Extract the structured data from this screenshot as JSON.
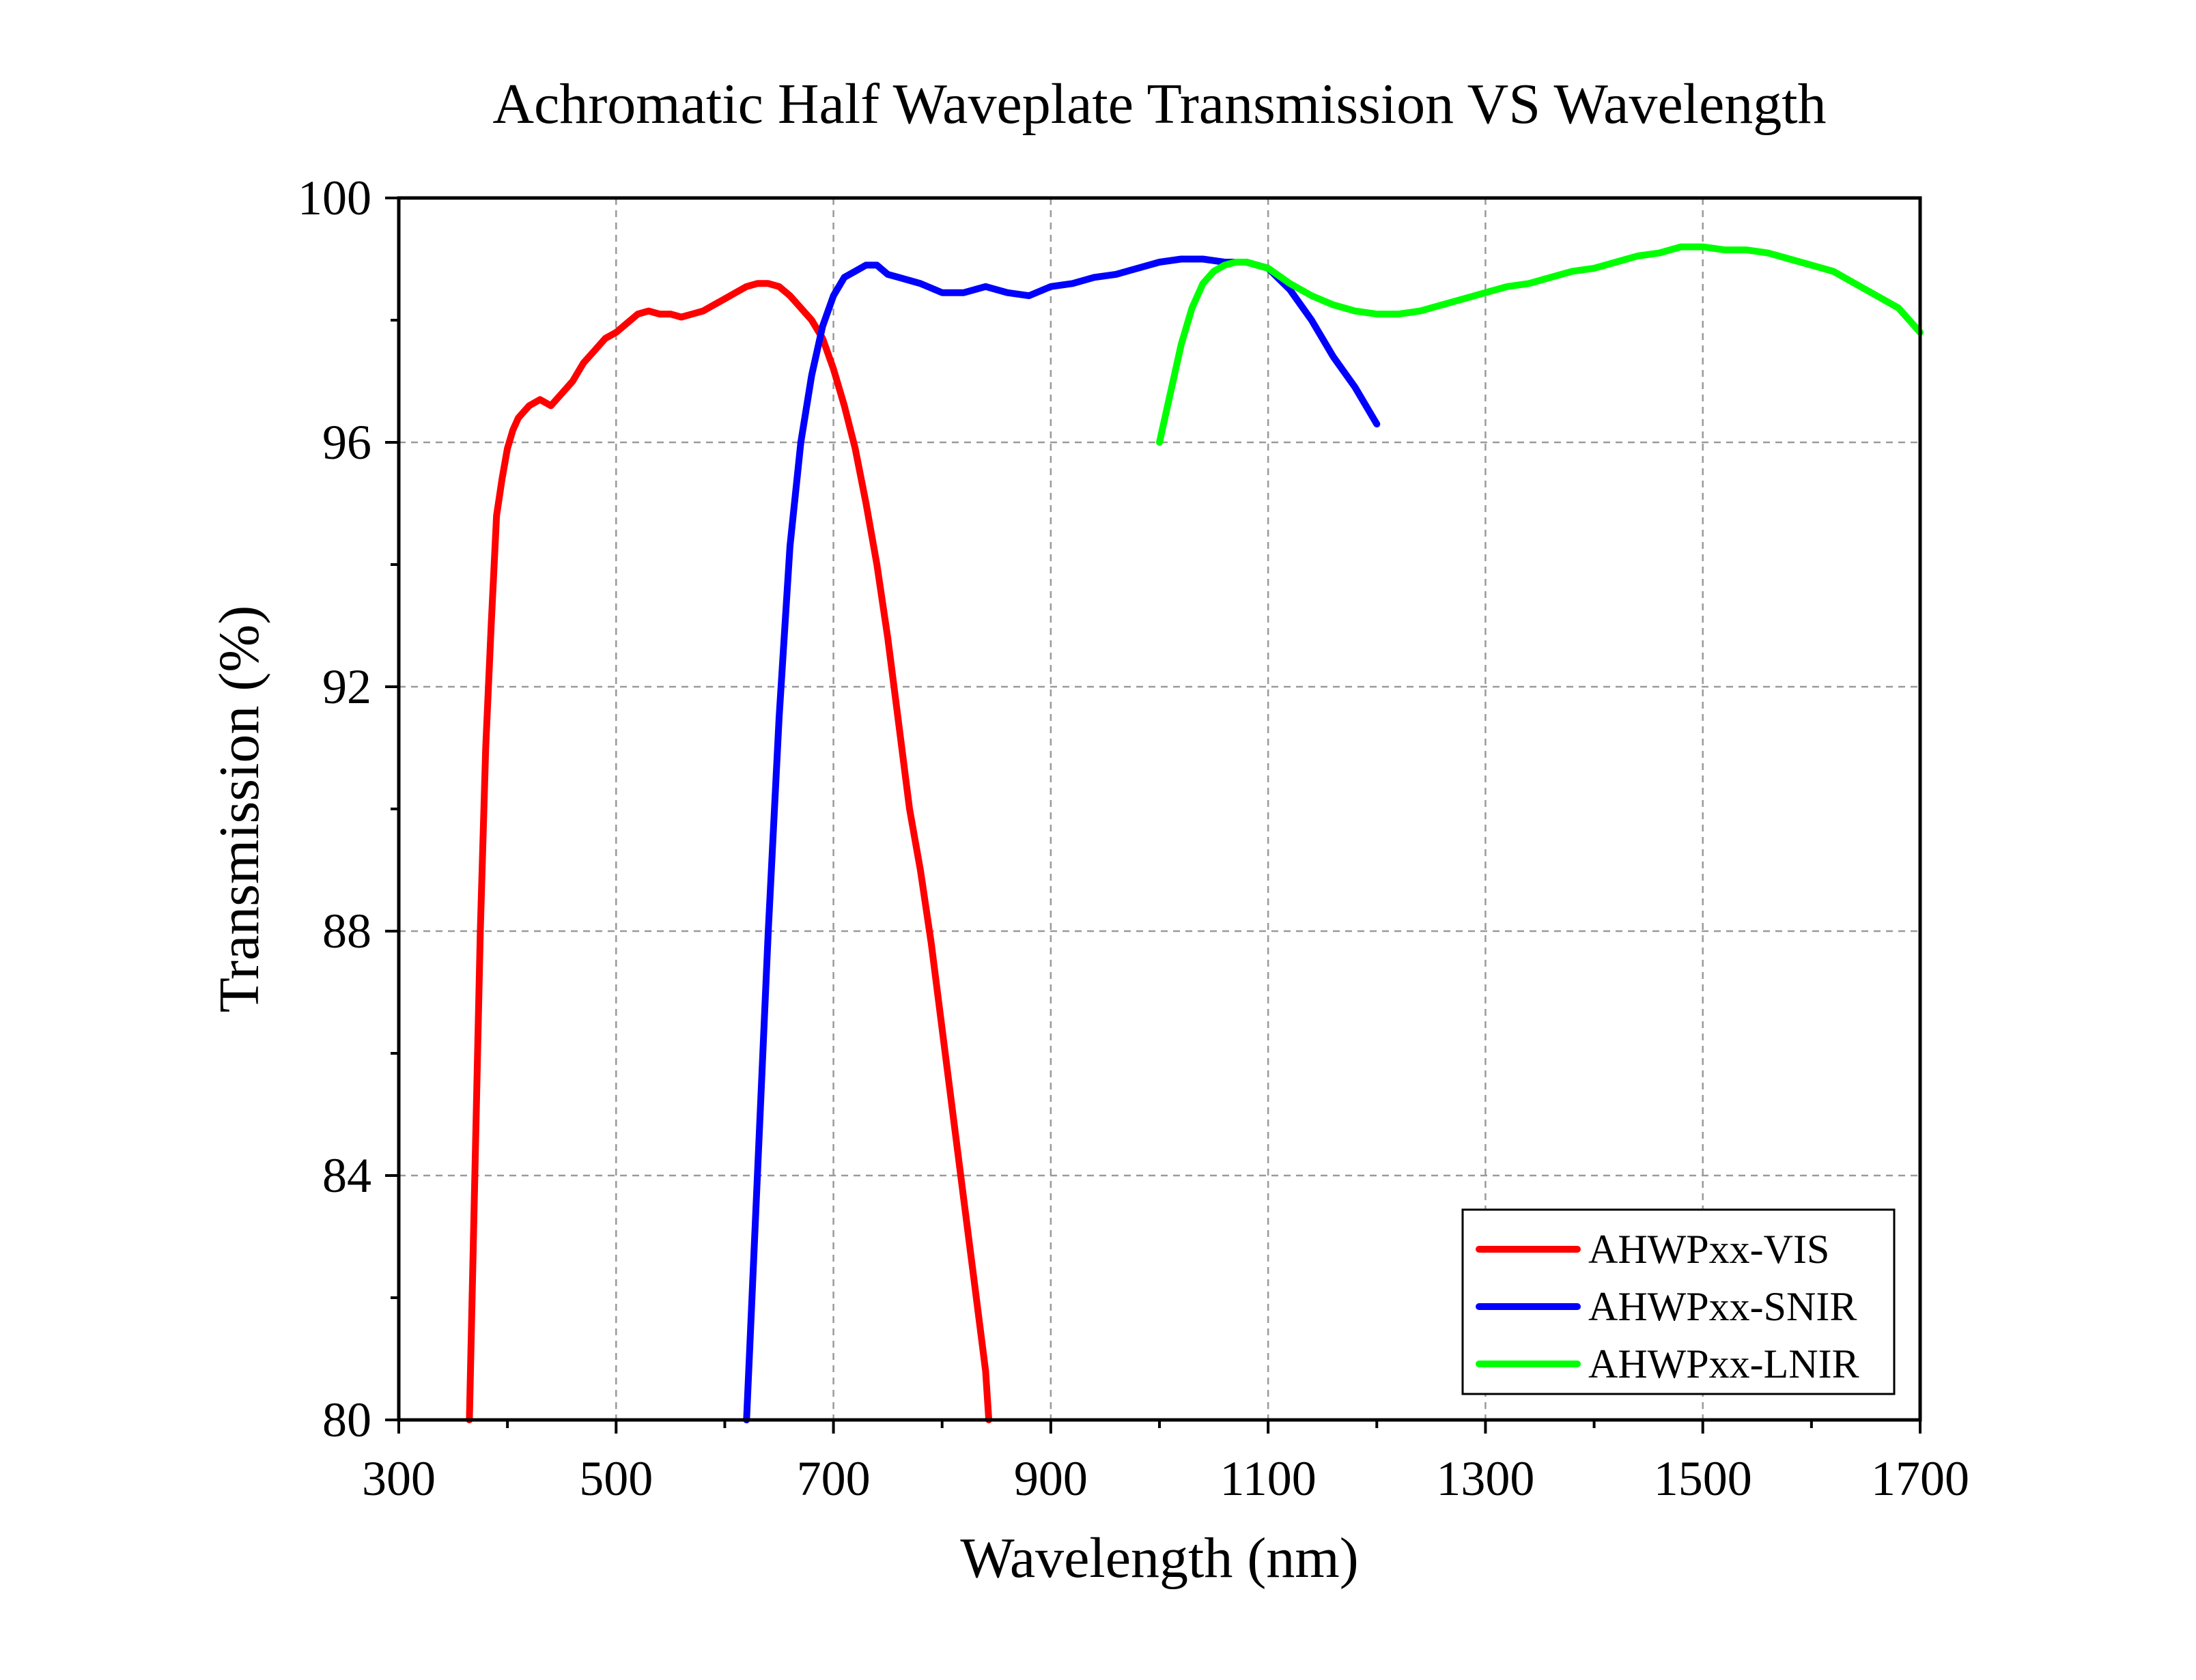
{
  "chart_data": {
    "type": "line",
    "title": "Achromatic Half Waveplate Transmission VS Wavelength",
    "xlabel": "Wavelength (nm)",
    "ylabel": "Transmission (%)",
    "xlim": [
      300,
      1700
    ],
    "ylim": [
      80,
      100
    ],
    "xticks": [
      300,
      500,
      700,
      900,
      1100,
      1300,
      1500,
      1700
    ],
    "yticks": [
      80,
      84,
      88,
      92,
      96,
      100
    ],
    "yminor_ticks": [
      82,
      86,
      90,
      94,
      98
    ],
    "grid": true,
    "legend_position": "bottom-right",
    "series": [
      {
        "name": "AHWPxx-VIS",
        "color": "#ff0000",
        "x": [
          365,
          370,
          375,
          380,
          385,
          390,
          395,
          400,
          405,
          410,
          420,
          430,
          440,
          450,
          460,
          470,
          480,
          490,
          500,
          510,
          520,
          530,
          540,
          550,
          560,
          570,
          580,
          590,
          600,
          610,
          620,
          630,
          640,
          650,
          660,
          670,
          680,
          690,
          700,
          710,
          720,
          730,
          740,
          750,
          760,
          770,
          780,
          790,
          800,
          810,
          820,
          830,
          840,
          843
        ],
        "y": [
          80.0,
          84.0,
          88.0,
          91.0,
          93.0,
          94.8,
          95.4,
          95.9,
          96.2,
          96.4,
          96.6,
          96.7,
          96.6,
          96.8,
          97.0,
          97.3,
          97.5,
          97.7,
          97.8,
          97.95,
          98.1,
          98.15,
          98.1,
          98.1,
          98.05,
          98.1,
          98.15,
          98.25,
          98.35,
          98.45,
          98.55,
          98.6,
          98.6,
          98.55,
          98.4,
          98.2,
          98.0,
          97.7,
          97.2,
          96.6,
          95.9,
          95.0,
          94.0,
          92.8,
          91.4,
          90.0,
          89.0,
          87.8,
          86.4,
          85.0,
          83.6,
          82.2,
          80.8,
          80.0
        ]
      },
      {
        "name": "AHWPxx-SNIR",
        "color": "#0000ff",
        "x": [
          620,
          630,
          640,
          650,
          660,
          670,
          680,
          690,
          700,
          710,
          720,
          730,
          740,
          750,
          760,
          780,
          800,
          820,
          840,
          860,
          880,
          900,
          920,
          940,
          960,
          980,
          1000,
          1020,
          1040,
          1060,
          1080,
          1100,
          1120,
          1140,
          1160,
          1180,
          1200
        ],
        "y": [
          80.0,
          84.0,
          88.0,
          91.5,
          94.3,
          96.0,
          97.1,
          97.9,
          98.4,
          98.7,
          98.8,
          98.9,
          98.9,
          98.75,
          98.7,
          98.6,
          98.45,
          98.45,
          98.55,
          98.45,
          98.4,
          98.55,
          98.6,
          98.7,
          98.75,
          98.85,
          98.95,
          99.0,
          99.0,
          98.95,
          98.95,
          98.85,
          98.5,
          98.0,
          97.4,
          96.9,
          96.3
        ]
      },
      {
        "name": "AHWPxx-LNIR",
        "color": "#00ff00",
        "x": [
          1000,
          1010,
          1020,
          1030,
          1040,
          1050,
          1060,
          1070,
          1080,
          1100,
          1120,
          1140,
          1160,
          1180,
          1200,
          1220,
          1240,
          1260,
          1280,
          1300,
          1320,
          1340,
          1360,
          1380,
          1400,
          1420,
          1440,
          1460,
          1480,
          1500,
          1520,
          1540,
          1560,
          1580,
          1600,
          1620,
          1640,
          1660,
          1680,
          1700
        ],
        "y": [
          96.0,
          96.8,
          97.6,
          98.2,
          98.6,
          98.8,
          98.9,
          98.95,
          98.95,
          98.85,
          98.6,
          98.4,
          98.25,
          98.15,
          98.1,
          98.1,
          98.15,
          98.25,
          98.35,
          98.45,
          98.55,
          98.6,
          98.7,
          98.8,
          98.85,
          98.95,
          99.05,
          99.1,
          99.2,
          99.2,
          99.15,
          99.15,
          99.1,
          99.0,
          98.9,
          98.8,
          98.6,
          98.4,
          98.2,
          97.8
        ]
      }
    ]
  }
}
